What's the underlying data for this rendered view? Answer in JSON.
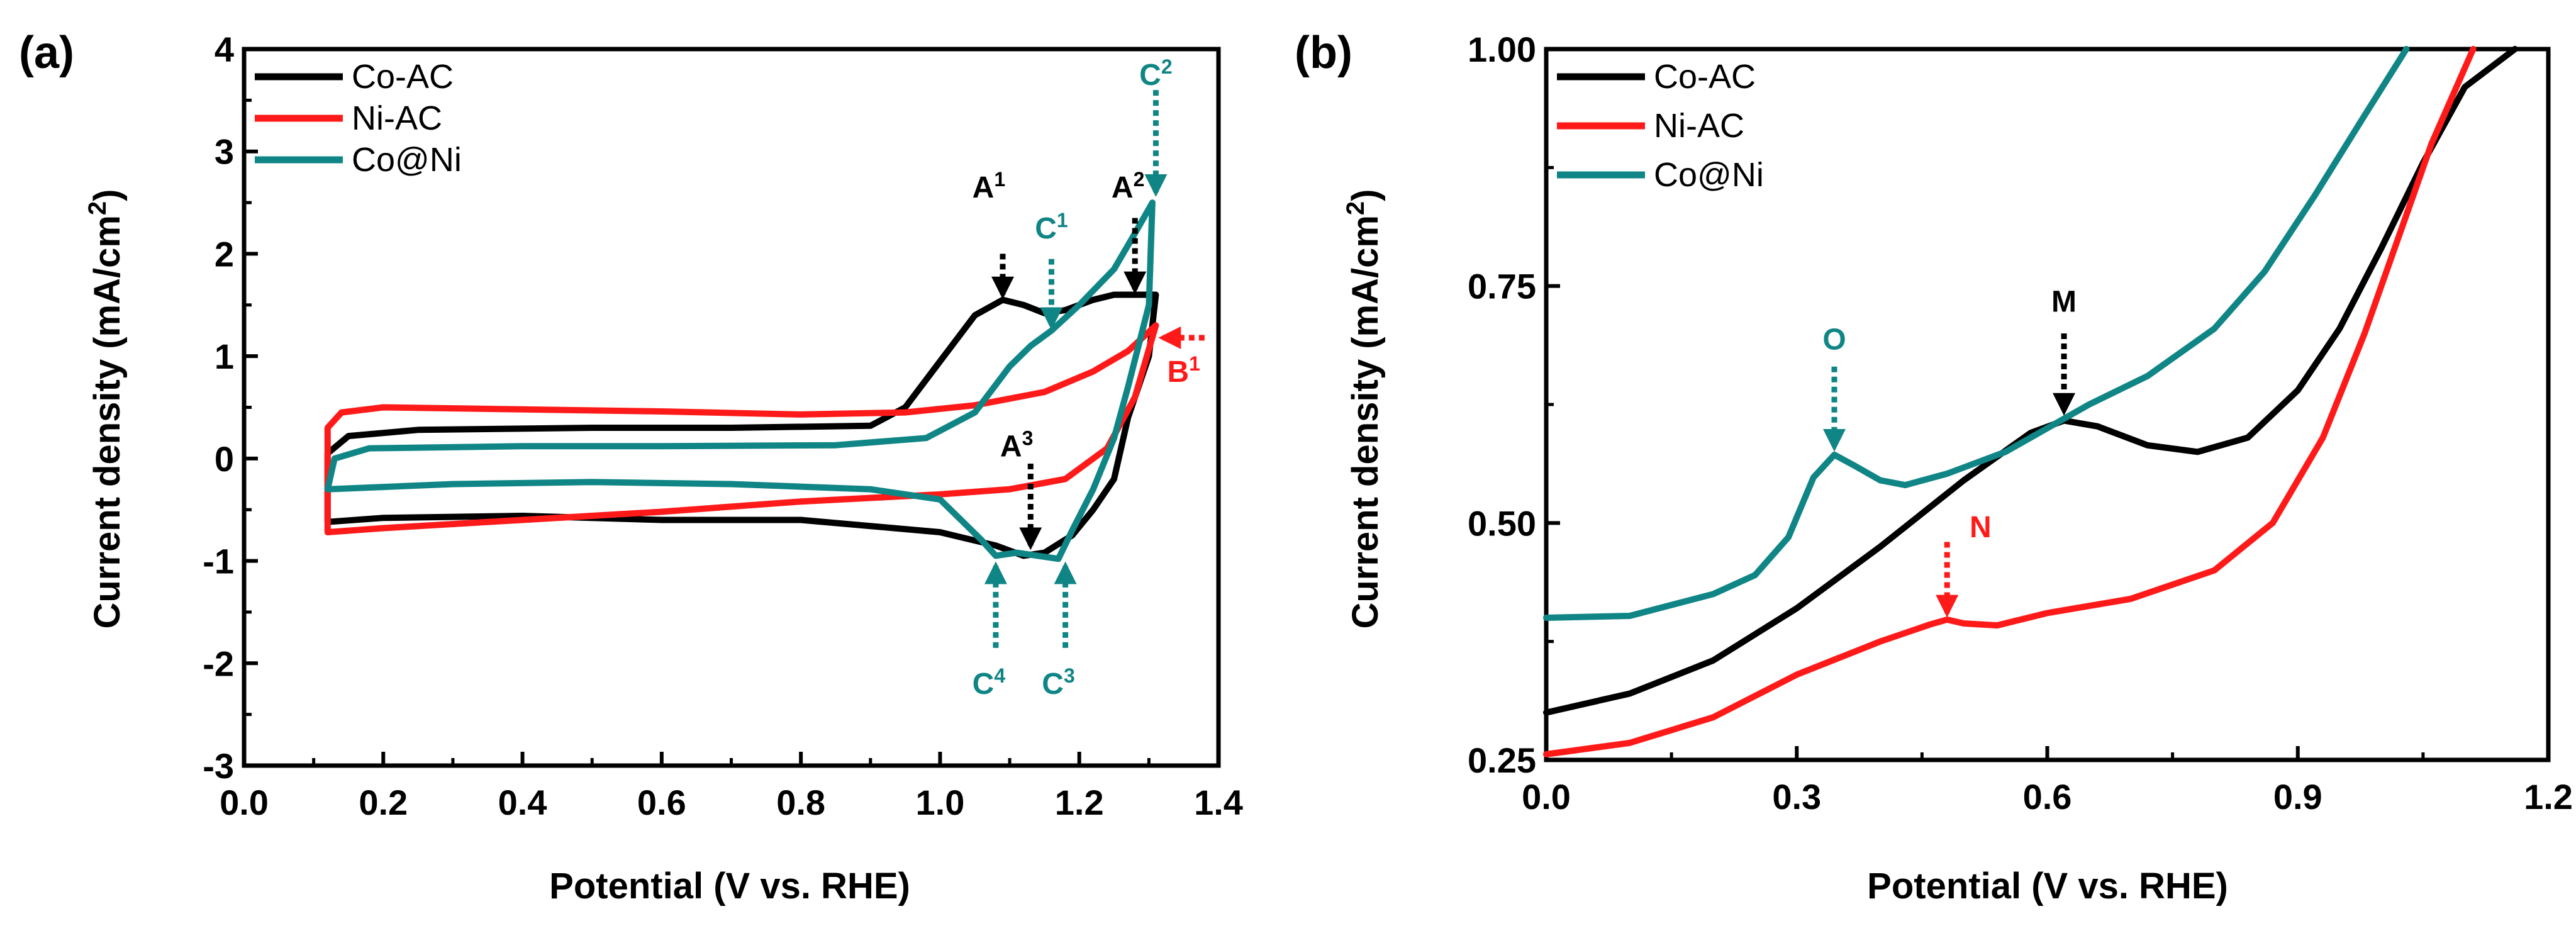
{
  "colors": {
    "co_ac": "#000000",
    "ni_ac": "#ff1a1a",
    "co_ni": "#108585",
    "axis": "#000000"
  },
  "chart_data": [
    {
      "panel_label": "(a)",
      "type": "line",
      "xlabel": "Potential (V vs. RHE)",
      "ylabel": "Current density (mA/cm2)",
      "xlim": [
        0.0,
        1.4
      ],
      "ylim": [
        -3,
        4
      ],
      "xticks": [
        "0.0",
        "0.2",
        "0.4",
        "0.6",
        "0.8",
        "1.0",
        "1.2",
        "1.4"
      ],
      "yticks": [
        "4",
        "3",
        "2",
        "1",
        "0",
        "-1",
        "-2",
        "-3"
      ],
      "legend_position": "top-left",
      "series": [
        {
          "name": "Co-AC",
          "color_key": "co_ac",
          "points": [
            [
              0.12,
              0.05
            ],
            [
              0.15,
              0.22
            ],
            [
              0.25,
              0.28
            ],
            [
              0.5,
              0.3
            ],
            [
              0.7,
              0.3
            ],
            [
              0.9,
              0.32
            ],
            [
              0.95,
              0.5
            ],
            [
              1.0,
              0.95
            ],
            [
              1.05,
              1.4
            ],
            [
              1.09,
              1.55
            ],
            [
              1.12,
              1.5
            ],
            [
              1.15,
              1.42
            ],
            [
              1.18,
              1.45
            ],
            [
              1.22,
              1.55
            ],
            [
              1.25,
              1.6
            ],
            [
              1.28,
              1.6
            ],
            [
              1.31,
              1.6
            ],
            [
              1.3,
              1.0
            ],
            [
              1.27,
              0.4
            ],
            [
              1.25,
              -0.2
            ],
            [
              1.22,
              -0.5
            ],
            [
              1.19,
              -0.75
            ],
            [
              1.15,
              -0.92
            ],
            [
              1.12,
              -0.95
            ],
            [
              1.08,
              -0.85
            ],
            [
              1.0,
              -0.72
            ],
            [
              0.8,
              -0.6
            ],
            [
              0.6,
              -0.6
            ],
            [
              0.4,
              -0.56
            ],
            [
              0.2,
              -0.58
            ],
            [
              0.12,
              -0.62
            ],
            [
              0.12,
              0.05
            ]
          ]
        },
        {
          "name": "Ni-AC",
          "color_key": "ni_ac",
          "points": [
            [
              0.12,
              0.3
            ],
            [
              0.14,
              0.45
            ],
            [
              0.2,
              0.5
            ],
            [
              0.4,
              0.48
            ],
            [
              0.6,
              0.46
            ],
            [
              0.8,
              0.43
            ],
            [
              0.95,
              0.45
            ],
            [
              1.05,
              0.52
            ],
            [
              1.15,
              0.65
            ],
            [
              1.22,
              0.85
            ],
            [
              1.27,
              1.05
            ],
            [
              1.31,
              1.3
            ],
            [
              1.28,
              0.6
            ],
            [
              1.24,
              0.1
            ],
            [
              1.18,
              -0.2
            ],
            [
              1.1,
              -0.3
            ],
            [
              1.0,
              -0.35
            ],
            [
              0.8,
              -0.42
            ],
            [
              0.6,
              -0.52
            ],
            [
              0.4,
              -0.6
            ],
            [
              0.2,
              -0.68
            ],
            [
              0.12,
              -0.72
            ],
            [
              0.12,
              0.3
            ]
          ]
        },
        {
          "name": "Co@Ni",
          "color_key": "co_ni",
          "points": [
            [
              0.12,
              -0.3
            ],
            [
              0.13,
              0.0
            ],
            [
              0.18,
              0.1
            ],
            [
              0.4,
              0.12
            ],
            [
              0.6,
              0.12
            ],
            [
              0.85,
              0.13
            ],
            [
              0.98,
              0.2
            ],
            [
              1.05,
              0.45
            ],
            [
              1.1,
              0.9
            ],
            [
              1.13,
              1.1
            ],
            [
              1.16,
              1.25
            ],
            [
              1.2,
              1.5
            ],
            [
              1.25,
              1.85
            ],
            [
              1.28,
              2.2
            ],
            [
              1.305,
              2.5
            ],
            [
              1.3,
              1.5
            ],
            [
              1.27,
              0.7
            ],
            [
              1.25,
              0.2
            ],
            [
              1.22,
              -0.3
            ],
            [
              1.19,
              -0.7
            ],
            [
              1.17,
              -0.98
            ],
            [
              1.14,
              -0.95
            ],
            [
              1.11,
              -0.92
            ],
            [
              1.08,
              -0.95
            ],
            [
              1.06,
              -0.8
            ],
            [
              1.0,
              -0.4
            ],
            [
              0.9,
              -0.3
            ],
            [
              0.7,
              -0.25
            ],
            [
              0.5,
              -0.23
            ],
            [
              0.3,
              -0.25
            ],
            [
              0.12,
              -0.3
            ]
          ]
        }
      ],
      "annotations": [
        {
          "base": "A",
          "sup": "1",
          "color_key": "co_ac",
          "arrow_x": 1.09,
          "arrow_from_y": 2.0,
          "arrow_to_y": 1.6,
          "direction": "down",
          "label_x": 1.07,
          "label_y": 2.55
        },
        {
          "base": "A",
          "sup": "2",
          "color_key": "co_ac",
          "arrow_x": 1.28,
          "arrow_from_y": 2.35,
          "arrow_to_y": 1.65,
          "direction": "down",
          "label_x": 1.27,
          "label_y": 2.55
        },
        {
          "base": "C",
          "sup": "1",
          "color_key": "co_ni",
          "arrow_x": 1.16,
          "arrow_from_y": 1.95,
          "arrow_to_y": 1.3,
          "direction": "down",
          "label_x": 1.16,
          "label_y": 2.15
        },
        {
          "base": "C",
          "sup": "2",
          "color_key": "co_ni",
          "arrow_x": 1.31,
          "arrow_from_y": 3.6,
          "arrow_to_y": 2.6,
          "direction": "down",
          "label_x": 1.31,
          "label_y": 3.65
        },
        {
          "base": "B",
          "sup": "1",
          "color_key": "ni_ac",
          "arrow_from_x": 1.38,
          "arrow_to_x": 1.32,
          "arrow_y": 1.18,
          "direction": "left",
          "label_x": 1.35,
          "label_y": 0.75
        },
        {
          "base": "A",
          "sup": "3",
          "color_key": "co_ac",
          "arrow_x": 1.13,
          "arrow_from_y": -0.05,
          "arrow_to_y": -0.85,
          "direction": "down",
          "label_x": 1.11,
          "label_y": 0.02
        },
        {
          "base": "C",
          "sup": "4",
          "color_key": "co_ni",
          "arrow_x": 1.08,
          "arrow_from_y": -1.85,
          "arrow_to_y": -1.05,
          "direction": "up",
          "label_x": 1.07,
          "label_y": -2.3
        },
        {
          "base": "C",
          "sup": "3",
          "color_key": "co_ni",
          "arrow_x": 1.18,
          "arrow_from_y": -1.85,
          "arrow_to_y": -1.05,
          "direction": "up",
          "label_x": 1.17,
          "label_y": -2.3
        }
      ]
    },
    {
      "panel_label": "(b)",
      "type": "line",
      "xlabel": "Potential (V vs. RHE)",
      "ylabel": "Current density (mA/cm2)",
      "xlim": [
        0.0,
        1.2
      ],
      "ylim": [
        0.25,
        1.0
      ],
      "xticks": [
        "0.0",
        "0.3",
        "0.6",
        "0.9",
        "1.2"
      ],
      "yticks": [
        "1.00",
        "0.75",
        "0.50",
        "0.25"
      ],
      "legend_position": "top-left",
      "series": [
        {
          "name": "Co-AC",
          "color_key": "co_ac",
          "points": [
            [
              0.0,
              0.3
            ],
            [
              0.1,
              0.32
            ],
            [
              0.2,
              0.355
            ],
            [
              0.3,
              0.41
            ],
            [
              0.4,
              0.475
            ],
            [
              0.5,
              0.545
            ],
            [
              0.58,
              0.595
            ],
            [
              0.62,
              0.608
            ],
            [
              0.66,
              0.602
            ],
            [
              0.72,
              0.582
            ],
            [
              0.78,
              0.575
            ],
            [
              0.84,
              0.59
            ],
            [
              0.9,
              0.64
            ],
            [
              0.95,
              0.705
            ],
            [
              1.0,
              0.79
            ],
            [
              1.05,
              0.88
            ],
            [
              1.1,
              0.96
            ],
            [
              1.16,
              1.0
            ]
          ]
        },
        {
          "name": "Ni-AC",
          "color_key": "ni_ac",
          "points": [
            [
              0.0,
              0.256
            ],
            [
              0.1,
              0.268
            ],
            [
              0.2,
              0.295
            ],
            [
              0.3,
              0.34
            ],
            [
              0.4,
              0.375
            ],
            [
              0.46,
              0.393
            ],
            [
              0.48,
              0.398
            ],
            [
              0.5,
              0.394
            ],
            [
              0.54,
              0.392
            ],
            [
              0.6,
              0.405
            ],
            [
              0.7,
              0.42
            ],
            [
              0.8,
              0.45
            ],
            [
              0.87,
              0.5
            ],
            [
              0.93,
              0.59
            ],
            [
              0.98,
              0.7
            ],
            [
              1.02,
              0.8
            ],
            [
              1.06,
              0.9
            ],
            [
              1.11,
              1.0
            ]
          ]
        },
        {
          "name": "Co@Ni",
          "color_key": "co_ni",
          "points": [
            [
              0.0,
              0.4
            ],
            [
              0.1,
              0.402
            ],
            [
              0.2,
              0.425
            ],
            [
              0.25,
              0.445
            ],
            [
              0.29,
              0.485
            ],
            [
              0.32,
              0.548
            ],
            [
              0.345,
              0.572
            ],
            [
              0.37,
              0.56
            ],
            [
              0.4,
              0.545
            ],
            [
              0.43,
              0.54
            ],
            [
              0.48,
              0.552
            ],
            [
              0.55,
              0.575
            ],
            [
              0.6,
              0.6
            ],
            [
              0.65,
              0.625
            ],
            [
              0.72,
              0.655
            ],
            [
              0.8,
              0.705
            ],
            [
              0.86,
              0.765
            ],
            [
              0.92,
              0.845
            ],
            [
              0.98,
              0.93
            ],
            [
              1.03,
              1.0
            ]
          ]
        }
      ],
      "annotations": [
        {
          "base": "O",
          "sup": "",
          "color_key": "co_ni",
          "arrow_x": 0.345,
          "arrow_from_y": 0.665,
          "arrow_to_y": 0.58,
          "direction": "down",
          "label_x": 0.345,
          "label_y": 0.683
        },
        {
          "base": "M",
          "sup": "",
          "color_key": "co_ac",
          "arrow_x": 0.62,
          "arrow_from_y": 0.7,
          "arrow_to_y": 0.618,
          "direction": "down",
          "label_x": 0.62,
          "label_y": 0.723
        },
        {
          "base": "N",
          "sup": "",
          "color_key": "ni_ac",
          "arrow_x": 0.48,
          "arrow_from_y": 0.48,
          "arrow_to_y": 0.405,
          "direction": "down",
          "label_x": 0.52,
          "label_y": 0.485
        }
      ]
    }
  ]
}
